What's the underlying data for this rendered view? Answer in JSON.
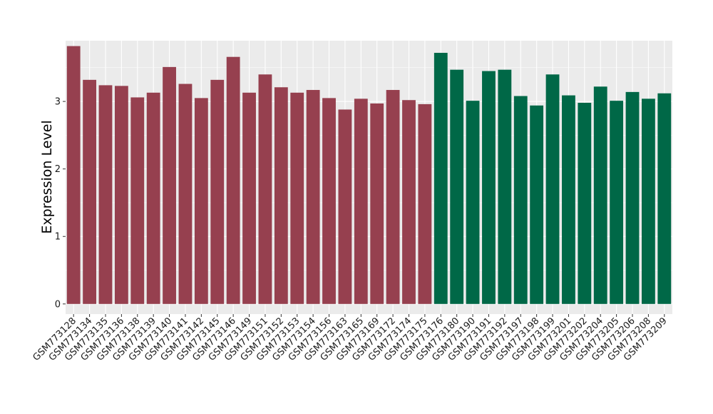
{
  "chart_data": {
    "type": "bar",
    "title": "",
    "xlabel": "",
    "ylabel": "Expression Level",
    "ylim": [
      -0.15,
      3.9
    ],
    "yticks": [
      0,
      1,
      2,
      3
    ],
    "grid": true,
    "legend": "none",
    "categories": [
      "GSM773128",
      "GSM773134",
      "GSM773135",
      "GSM773136",
      "GSM773138",
      "GSM773139",
      "GSM773140",
      "GSM773141",
      "GSM773142",
      "GSM773145",
      "GSM773146",
      "GSM773149",
      "GSM773151",
      "GSM773152",
      "GSM773153",
      "GSM773154",
      "GSM773156",
      "GSM773163",
      "GSM773165",
      "GSM773169",
      "GSM773172",
      "GSM773174",
      "GSM773175",
      "GSM773176",
      "GSM773180",
      "GSM773190",
      "GSM773191",
      "GSM773192",
      "GSM773197",
      "GSM773198",
      "GSM773199",
      "GSM773201",
      "GSM773202",
      "GSM773204",
      "GSM773205",
      "GSM773206",
      "GSM773208",
      "GSM773209"
    ],
    "values": [
      3.82,
      3.32,
      3.24,
      3.23,
      3.06,
      3.13,
      3.51,
      3.26,
      3.05,
      3.32,
      3.66,
      3.13,
      3.4,
      3.21,
      3.13,
      3.17,
      3.05,
      2.88,
      3.04,
      2.97,
      3.17,
      3.02,
      2.96,
      3.72,
      3.47,
      3.01,
      3.45,
      3.47,
      3.08,
      2.94,
      3.4,
      3.09,
      2.98,
      3.22,
      3.01,
      3.14,
      3.04,
      3.12
    ],
    "group_colors": [
      "#96404f",
      "#006847"
    ],
    "group_split_index": 23,
    "panel_background": "#ebebeb",
    "grid_color": "#ffffff"
  }
}
